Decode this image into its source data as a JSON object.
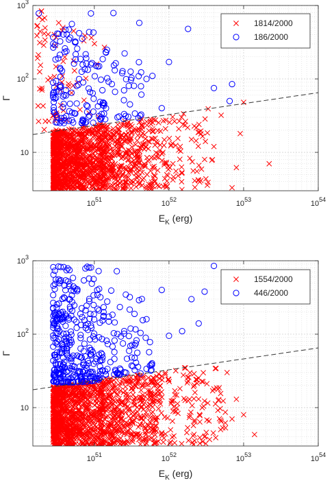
{
  "colors": {
    "red": "#ff0000",
    "blue": "#0000ff",
    "grid": "#d0d0d0",
    "axis": "#262626",
    "threshold": "#333333"
  },
  "chart_data": [
    {
      "type": "scatter",
      "xlabel": "E",
      "xlabel_sub": "K",
      "xlabel_unit": "(erg)",
      "ylabel": "Γ",
      "xscale": "log",
      "yscale": "log",
      "xlim": [
        1.5e+50,
        1e+54
      ],
      "ylim": [
        3,
        1000
      ],
      "grid": true,
      "legend_position": "top-right",
      "x_ticks": [
        {
          "base": "10",
          "exp": "51",
          "value": 1e+51
        },
        {
          "base": "10",
          "exp": "52",
          "value": 1e+52
        },
        {
          "base": "10",
          "exp": "53",
          "value": 1e+53
        },
        {
          "base": "10",
          "exp": "54",
          "value": 1e+54
        }
      ],
      "y_ticks": [
        {
          "base": "10",
          "exp": "",
          "value": 10
        },
        {
          "base": "10",
          "exp": "2",
          "value": 100
        },
        {
          "base": "10",
          "exp": "3",
          "value": 1000
        }
      ],
      "threshold_line": {
        "x": [
          1.5e+50,
          1e+54
        ],
        "y": [
          17.5,
          65
        ]
      },
      "series": [
        {
          "name": "1814/2000",
          "marker": "x",
          "color": "#ff0000",
          "clouds": [
            {
              "count": 1000,
              "xmin": 2.8e+50,
              "xmax": 1.2e+51,
              "ymin": 3,
              "ymax": 26,
              "lineTop": true
            },
            {
              "count": 420,
              "xmin": 1.2e+51,
              "xmax": 6e+51,
              "ymin": 3,
              "ymax": 36,
              "lineTop": true
            },
            {
              "count": 120,
              "xmin": 6e+51,
              "xmax": 4e+52,
              "ymin": 3,
              "ymax": 40,
              "lineTop": true
            },
            {
              "count": 45,
              "xmin": 1.7e+50,
              "xmax": 4e+50,
              "ymin": 20,
              "ymax": 850
            },
            {
              "count": 30,
              "xmin": 3e+50,
              "xmax": 1.5e+51,
              "ymin": 20,
              "ymax": 450
            }
          ],
          "points": [
            {
              "x": 2.2e+53,
              "y": 7
            },
            {
              "x": 8e+52,
              "y": 6.2
            },
            {
              "x": 9e+52,
              "y": 18
            },
            {
              "x": 5e+52,
              "y": 32
            },
            {
              "x": 1e+53,
              "y": 48
            },
            {
              "x": 4e+52,
              "y": 12
            },
            {
              "x": 2e+52,
              "y": 15
            },
            {
              "x": 3e+52,
              "y": 8
            },
            {
              "x": 7e+52,
              "y": 3.3
            }
          ]
        },
        {
          "name": "186/2000",
          "marker": "o",
          "color": "#0000ff",
          "clouds": [
            {
              "count": 120,
              "xmin": 2.8e+50,
              "xmax": 1.2e+51,
              "ymin": 25,
              "ymax": 500,
              "lineBottom": true
            },
            {
              "count": 50,
              "xmin": 1.2e+51,
              "xmax": 5e+51,
              "ymin": 28,
              "ymax": 250,
              "lineBottom": true
            }
          ],
          "points": [
            {
              "x": 4e+51,
              "y": 580
            },
            {
              "x": 1e+52,
              "y": 170
            },
            {
              "x": 1.8e+52,
              "y": 480
            },
            {
              "x": 7e+52,
              "y": 85
            },
            {
              "x": 4e+52,
              "y": 75
            },
            {
              "x": 6.5e+52,
              "y": 50
            },
            {
              "x": 5e+51,
              "y": 100
            },
            {
              "x": 6e+51,
              "y": 110
            },
            {
              "x": 8e+51,
              "y": 40
            },
            {
              "x": 1.8e+51,
              "y": 790
            },
            {
              "x": 1.8e+50,
              "y": 780
            },
            {
              "x": 5e+50,
              "y": 560
            },
            {
              "x": 9e+50,
              "y": 780
            },
            {
              "x": 3e+51,
              "y": 45
            },
            {
              "x": 2.5e+51,
              "y": 70
            }
          ]
        }
      ]
    },
    {
      "type": "scatter",
      "xlabel": "E",
      "xlabel_sub": "K",
      "xlabel_unit": "(erg)",
      "ylabel": "Γ",
      "xscale": "log",
      "yscale": "log",
      "xlim": [
        1.5e+50,
        1e+54
      ],
      "ylim": [
        3,
        1000
      ],
      "grid": true,
      "legend_position": "top-right",
      "x_ticks": [
        {
          "base": "10",
          "exp": "51",
          "value": 1e+51
        },
        {
          "base": "10",
          "exp": "52",
          "value": 1e+52
        },
        {
          "base": "10",
          "exp": "53",
          "value": 1e+53
        },
        {
          "base": "10",
          "exp": "54",
          "value": 1e+54
        }
      ],
      "y_ticks": [
        {
          "base": "10",
          "exp": "",
          "value": 10
        },
        {
          "base": "10",
          "exp": "2",
          "value": 100
        },
        {
          "base": "10",
          "exp": "3",
          "value": 1000
        }
      ],
      "threshold_line": {
        "x": [
          1.5e+50,
          1e+54
        ],
        "y": [
          17.5,
          65
        ]
      },
      "series": [
        {
          "name": "1554/2000",
          "marker": "x",
          "color": "#ff0000",
          "clouds": [
            {
              "count": 900,
              "xmin": 2.8e+50,
              "xmax": 1.2e+51,
              "ymin": 3,
              "ymax": 22,
              "lineTop": true
            },
            {
              "count": 450,
              "xmin": 1.2e+51,
              "xmax": 6e+51,
              "ymin": 3,
              "ymax": 30,
              "lineTop": true
            },
            {
              "count": 180,
              "xmin": 6e+51,
              "xmax": 6e+52,
              "ymin": 3,
              "ymax": 35,
              "lineTop": true
            }
          ],
          "points": [
            {
              "x": 1.4e+53,
              "y": 4.3
            },
            {
              "x": 8e+52,
              "y": 13
            },
            {
              "x": 6e+52,
              "y": 30
            },
            {
              "x": 1e+53,
              "y": 8
            },
            {
              "x": 5e+52,
              "y": 6.5
            },
            {
              "x": 4e+52,
              "y": 18
            },
            {
              "x": 3e+52,
              "y": 4
            },
            {
              "x": 7e+52,
              "y": 7
            }
          ]
        },
        {
          "name": "446/2000",
          "marker": "o",
          "color": "#0000ff",
          "clouds": [
            {
              "count": 330,
              "xmin": 2.8e+50,
              "xmax": 1.2e+51,
              "ymin": 22,
              "ymax": 850,
              "lineBottom": true
            },
            {
              "count": 90,
              "xmin": 1.2e+51,
              "xmax": 6e+51,
              "ymin": 28,
              "ymax": 400,
              "lineBottom": true
            }
          ],
          "points": [
            {
              "x": 4e+52,
              "y": 850
            },
            {
              "x": 3e+52,
              "y": 380
            },
            {
              "x": 2e+52,
              "y": 300
            },
            {
              "x": 1e+52,
              "y": 95
            },
            {
              "x": 1.5e+52,
              "y": 110
            },
            {
              "x": 8e+51,
              "y": 400
            },
            {
              "x": 2e+51,
              "y": 720
            },
            {
              "x": 2.5e+52,
              "y": 140
            },
            {
              "x": 5e+51,
              "y": 160
            }
          ]
        }
      ]
    }
  ]
}
